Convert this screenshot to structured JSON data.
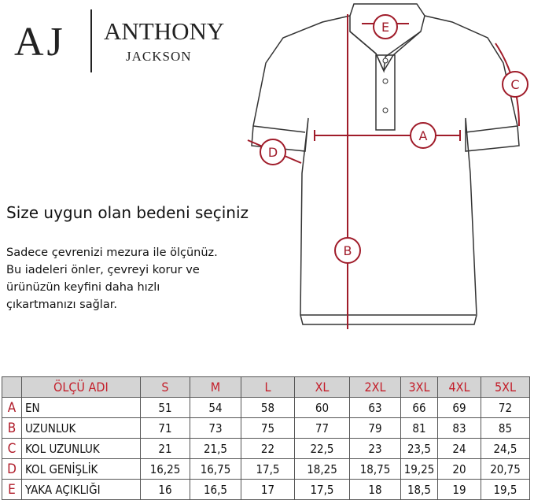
{
  "brand": {
    "initials": "AJ",
    "name_line1": "ANTHONY",
    "name_line2": "JACKSON"
  },
  "heading": "Size uygun olan bedeni seçiniz",
  "description": [
    "Sadece çevrenizi mezura ile ölçünüz.",
    "Bu iadeleri önler, çevreyi korur ve",
    "ürünüzün keyfini daha hızlı",
    "çıkartmanızı sağlar."
  ],
  "diagram": {
    "markers": [
      "A",
      "B",
      "C",
      "D",
      "E"
    ],
    "accent": "#a01c2a"
  },
  "table": {
    "header": {
      "name": "ÖLÇÜ ADI",
      "sizes": [
        "S",
        "M",
        "L",
        "XL",
        "2XL",
        "3XL",
        "4XL",
        "5XL"
      ]
    },
    "rows": [
      {
        "letter": "A",
        "name": "EN",
        "values": [
          "51",
          "54",
          "58",
          "60",
          "63",
          "66",
          "69",
          "72"
        ]
      },
      {
        "letter": "B",
        "name": "UZUNLUK",
        "values": [
          "71",
          "73",
          "75",
          "77",
          "79",
          "81",
          "83",
          "85"
        ]
      },
      {
        "letter": "C",
        "name": "KOL UZUNLUK",
        "values": [
          "21",
          "21,5",
          "22",
          "22,5",
          "23",
          "23,5",
          "24",
          "24,5"
        ]
      },
      {
        "letter": "D",
        "name": "KOL GENİŞLİK",
        "values": [
          "16,25",
          "16,75",
          "17,5",
          "18,25",
          "18,75",
          "19,25",
          "20",
          "20,75"
        ]
      },
      {
        "letter": "E",
        "name": "YAKA AÇIKLIĞI",
        "values": [
          "16",
          "16,5",
          "17",
          "17,5",
          "18",
          "18,5",
          "19",
          "19,5"
        ]
      }
    ]
  }
}
